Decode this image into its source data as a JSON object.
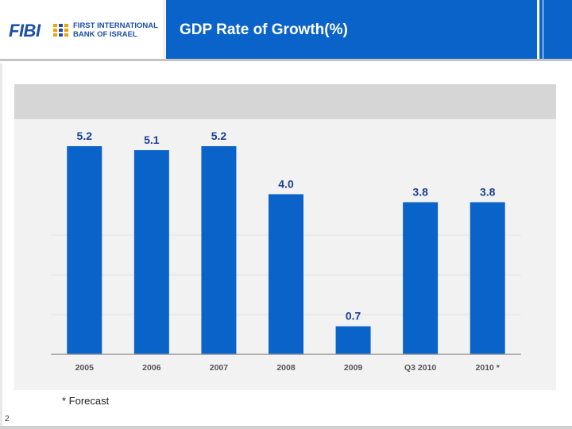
{
  "header": {
    "logo_text": "FIBI",
    "bank_name_line1": "FIRST INTERNATIONAL",
    "bank_name_line2": "BANK OF ISRAEL",
    "title": "GDP Rate of Growth(%)"
  },
  "chart_data": {
    "type": "bar",
    "title": "GDP Rate of Growth(%)",
    "categories": [
      "2005",
      "2006",
      "2007",
      "2008",
      "2009",
      "Q3 2010",
      "2010 *"
    ],
    "values": [
      5.2,
      5.1,
      5.2,
      4.0,
      0.7,
      3.8,
      3.8
    ],
    "value_labels": [
      "5.2",
      "5.1",
      "5.2",
      "4.0",
      "0.7",
      "3.8",
      "3.8"
    ],
    "xlabel": "",
    "ylabel": "",
    "ylim": [
      0,
      5.2
    ],
    "grid": true,
    "bar_color": "#0a63c8",
    "label_color": "#1b3f93"
  },
  "footnote": "* Forecast",
  "page_number": "2"
}
